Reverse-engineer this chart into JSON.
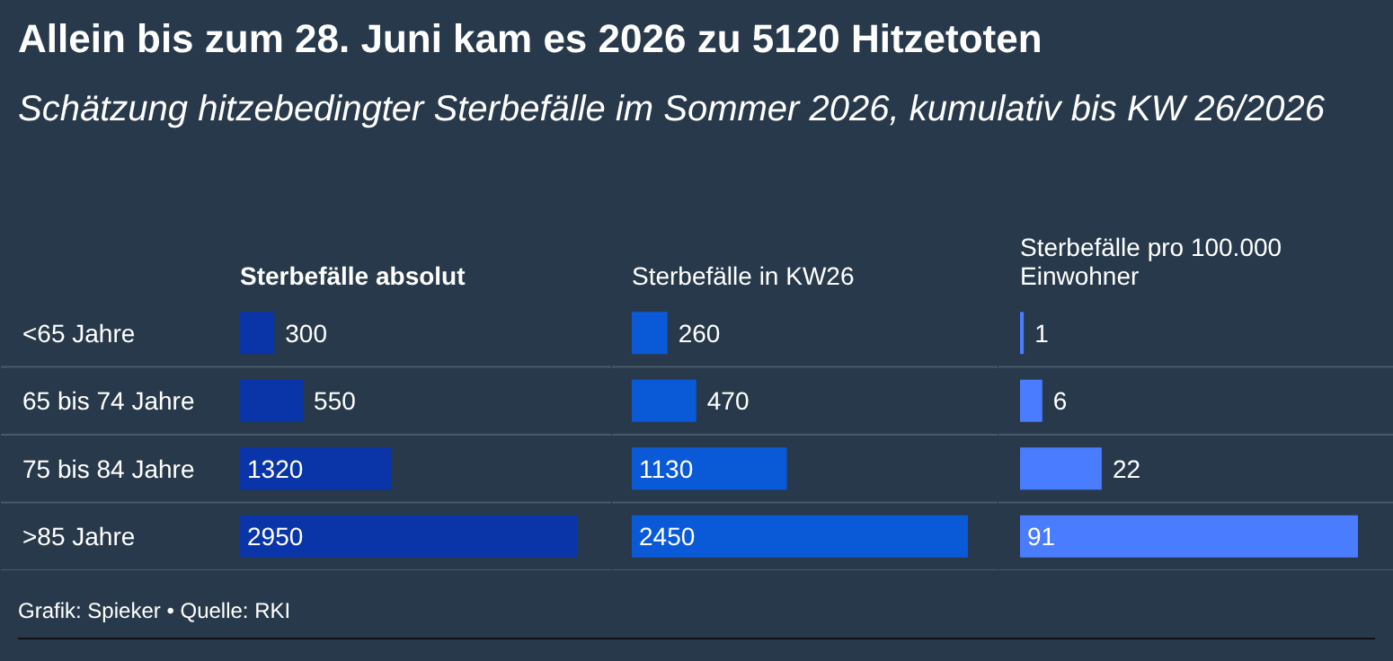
{
  "chart_data": [
    {
      "type": "bar",
      "orientation": "horizontal",
      "title": "Allein bis zum 28. Juni kam es 2026 zu 5120 Hitzetoten",
      "subtitle": "Schätzung hitzebedingter Sterbefälle im Sommer 2026, kumulativ bis KW 26/2026",
      "xlabel": "Sterbefälle absolut",
      "categories": [
        "<65 Jahre",
        "65 bis 74 Jahre",
        "75 bis 84 Jahre",
        ">85 Jahre"
      ],
      "values": [
        300,
        550,
        1320,
        2950
      ],
      "color": "#0a35a8",
      "data_labels": true,
      "grid": "y",
      "tick_labels": "y",
      "annotations": [
        "Grafik: Spieker • Quelle: RKI"
      ]
    },
    {
      "type": "bar",
      "orientation": "horizontal",
      "xlabel": "Sterbefälle in KW26",
      "categories": [
        null,
        null,
        null,
        null
      ],
      "values": [
        260,
        470,
        1130,
        2450
      ],
      "color": "#0a5ad8",
      "data_labels": true,
      "grid": "y"
    },
    {
      "type": "bar",
      "orientation": "horizontal",
      "xlabel": "Sterbefälle pro 100.000 Einwohner",
      "categories": [
        null,
        null,
        null,
        null
      ],
      "values": [
        1,
        6,
        22,
        91
      ],
      "color": "#4a7cff",
      "data_labels": true,
      "grid": "y"
    }
  ]
}
